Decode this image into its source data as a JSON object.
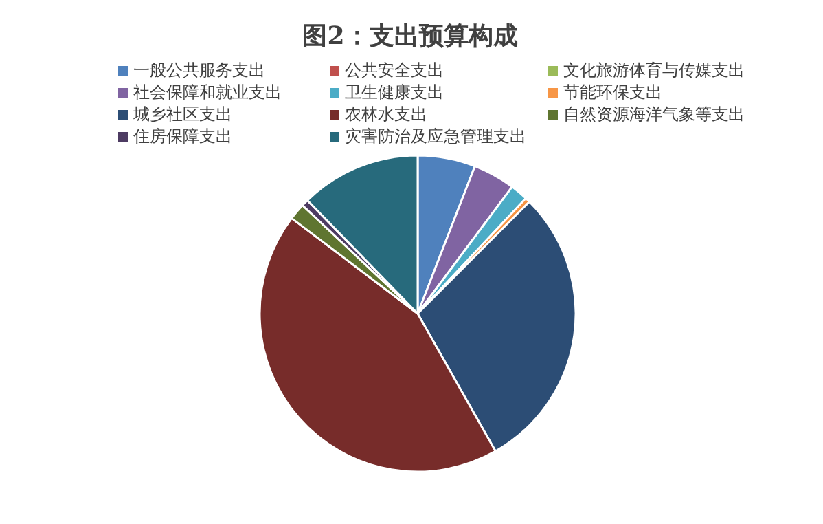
{
  "chart_data": {
    "type": "pie",
    "title": "图2：支出预算构成",
    "categories": [
      "一般公共服务支出",
      "公共安全支出",
      "文化旅游体育与传媒支出",
      "社会保障和就业支出",
      "卫生健康支出",
      "节能环保支出",
      "城乡社区支出",
      "农林水支出",
      "自然资源海洋气象等支出",
      "住房保障支出",
      "灾害防治及应急管理支出"
    ],
    "values": [
      5.9,
      0,
      0,
      4.3,
      1.8,
      0.5,
      29.3,
      43.5,
      1.7,
      0.7,
      12.3
    ],
    "colors": [
      "#4f81bd",
      "#c0504d",
      "#9bbb59",
      "#8064a2",
      "#4bacc6",
      "#f79646",
      "#2c4d75",
      "#772c2a",
      "#5f7530",
      "#4d3b62",
      "#276a7c"
    ],
    "legend": "top"
  }
}
